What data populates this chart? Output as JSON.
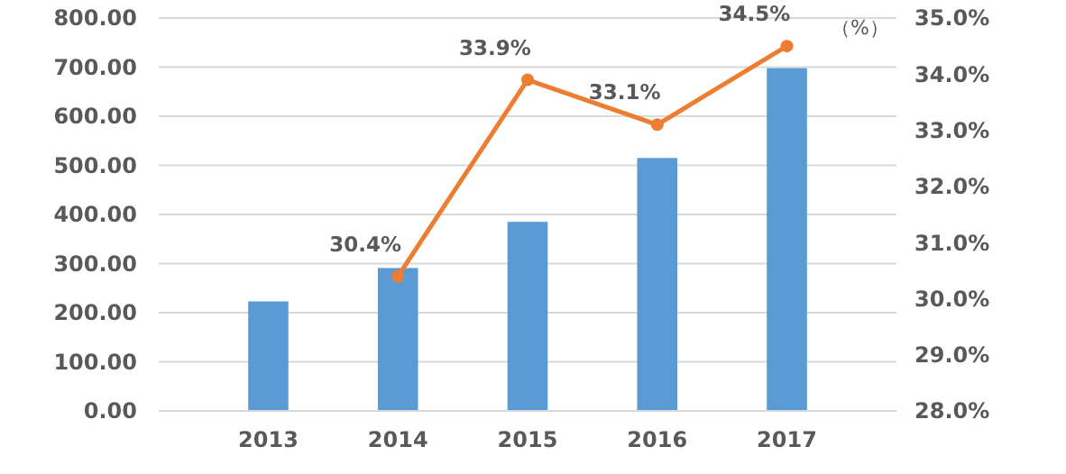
{
  "chart_data": {
    "type": "bar",
    "categories": [
      "2013",
      "2014",
      "2015",
      "2016",
      "2017"
    ],
    "series": [
      {
        "color": "#5b9bd5",
        "values": [
          223,
          291,
          385,
          515,
          698
        ]
      },
      {
        "type": "line",
        "axis": "y2",
        "color": "#ed7d31",
        "values": [
          null,
          30.4,
          33.9,
          33.1,
          34.5
        ],
        "value_labels": [
          null,
          "30.4%",
          "33.9%",
          "33.1%",
          "34.5%"
        ]
      }
    ],
    "ylim": [
      0,
      800
    ],
    "yticks": [
      {
        "value": 0,
        "label": "0.00"
      },
      {
        "value": 100,
        "label": "100.00"
      },
      {
        "value": 200,
        "label": "200.00"
      },
      {
        "value": 300,
        "label": "300.00"
      },
      {
        "value": 400,
        "label": "400.00"
      },
      {
        "value": 500,
        "label": "500.00"
      },
      {
        "value": 600,
        "label": "600.00"
      },
      {
        "value": 700,
        "label": "700.00"
      },
      {
        "value": 800,
        "label": "800.00"
      }
    ],
    "y2lim": [
      28,
      35
    ],
    "y2ticks": [
      {
        "value": 28,
        "label": "28.0%"
      },
      {
        "value": 29,
        "label": "29.0%"
      },
      {
        "value": 30,
        "label": "30.0%"
      },
      {
        "value": 31,
        "label": "31.0%"
      },
      {
        "value": 32,
        "label": "32.0%"
      },
      {
        "value": 33,
        "label": "33.0%"
      },
      {
        "value": 34,
        "label": "34.0%"
      },
      {
        "value": 35,
        "label": "35.0%"
      }
    ],
    "y2label": "（%）",
    "grid": "y",
    "marker": "circle",
    "line_style": "solid"
  }
}
